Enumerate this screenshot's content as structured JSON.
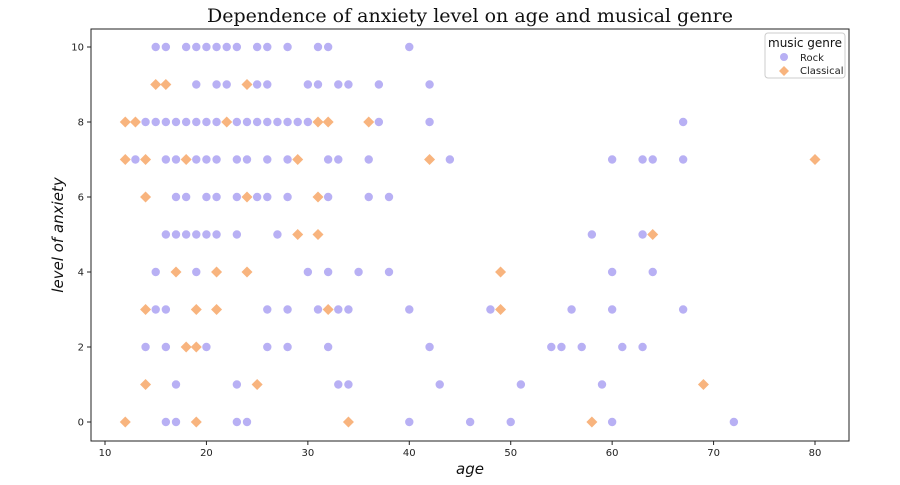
{
  "chart_data": {
    "type": "scatter",
    "title": "Dependence of anxiety level on age and musical genre",
    "xlabel": "age",
    "ylabel": "level of anxiety",
    "xlim": [
      8,
      83
    ],
    "ylim": [
      -0.5,
      10.5
    ],
    "xticks": [
      10,
      20,
      30,
      40,
      50,
      60,
      70,
      80
    ],
    "yticks": [
      0,
      2,
      4,
      6,
      8,
      10
    ],
    "grid": false,
    "legend": {
      "title": "music genre",
      "placement": "top-right"
    },
    "series": [
      {
        "name": "Rock",
        "marker": "circle",
        "color": "#b8b0f4",
        "data": [
          {
            "y": 10,
            "x": [
              15,
              16,
              18,
              19,
              20,
              21,
              22,
              23,
              25,
              26,
              28,
              31,
              32,
              40
            ]
          },
          {
            "y": 9,
            "x": [
              19,
              21,
              22,
              25,
              26,
              30,
              31,
              33,
              34,
              37,
              42
            ]
          },
          {
            "y": 8,
            "x": [
              14,
              15,
              16,
              17,
              18,
              19,
              20,
              21,
              23,
              24,
              25,
              26,
              27,
              28,
              29,
              30,
              37,
              42,
              67
            ]
          },
          {
            "y": 7,
            "x": [
              13,
              16,
              17,
              19,
              20,
              21,
              23,
              24,
              26,
              28,
              32,
              33,
              36,
              44,
              60,
              63,
              64,
              67
            ]
          },
          {
            "y": 6,
            "x": [
              17,
              18,
              20,
              21,
              23,
              25,
              26,
              28,
              32,
              36,
              38
            ]
          },
          {
            "y": 5,
            "x": [
              16,
              17,
              18,
              19,
              20,
              21,
              23,
              27,
              58,
              63
            ]
          },
          {
            "y": 4,
            "x": [
              15,
              19,
              30,
              32,
              35,
              38,
              60,
              64
            ]
          },
          {
            "y": 3,
            "x": [
              15,
              16,
              26,
              28,
              31,
              33,
              34,
              40,
              48,
              56,
              60,
              67
            ]
          },
          {
            "y": 2,
            "x": [
              14,
              16,
              20,
              26,
              28,
              32,
              42,
              54,
              55,
              57,
              61,
              63
            ]
          },
          {
            "y": 1,
            "x": [
              17,
              23,
              33,
              34,
              43,
              51,
              59
            ]
          },
          {
            "y": 0,
            "x": [
              16,
              17,
              23,
              24,
              40,
              46,
              50,
              60,
              72
            ]
          }
        ]
      },
      {
        "name": "Classical",
        "marker": "diamond",
        "color": "#f8b47e",
        "data": [
          {
            "y": 9,
            "x": [
              15,
              16,
              24
            ]
          },
          {
            "y": 8,
            "x": [
              12,
              13,
              22,
              31,
              32,
              36
            ]
          },
          {
            "y": 7,
            "x": [
              12,
              14,
              18,
              29,
              42,
              80
            ]
          },
          {
            "y": 6,
            "x": [
              14,
              24,
              31
            ]
          },
          {
            "y": 5,
            "x": [
              29,
              31,
              64
            ]
          },
          {
            "y": 4,
            "x": [
              17,
              21,
              24,
              49
            ]
          },
          {
            "y": 3,
            "x": [
              14,
              19,
              21,
              32,
              49
            ]
          },
          {
            "y": 2,
            "x": [
              18,
              19
            ]
          },
          {
            "y": 1,
            "x": [
              14,
              25,
              69
            ]
          },
          {
            "y": 0,
            "x": [
              12,
              19,
              34,
              58
            ]
          }
        ]
      }
    ]
  }
}
